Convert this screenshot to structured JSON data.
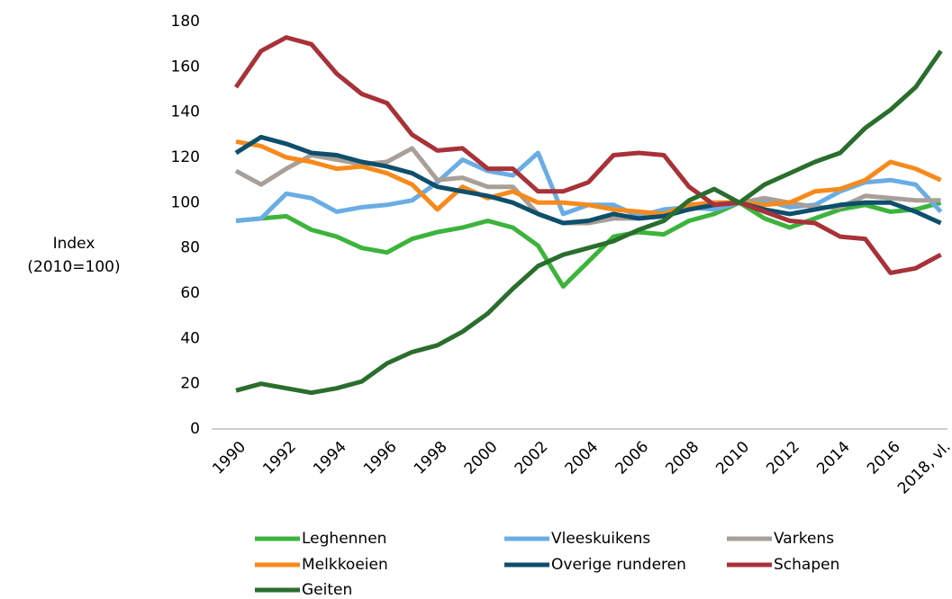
{
  "chart_data": {
    "type": "line",
    "y_label": [
      "Index",
      "(2010=100)"
    ],
    "categories": [
      "1990",
      null,
      "1992",
      null,
      "1994",
      null,
      "1996",
      null,
      "1998",
      null,
      "2000",
      null,
      "2002",
      null,
      "2004",
      null,
      "2006",
      null,
      "2008",
      null,
      "2010",
      null,
      "2012",
      null,
      "2014",
      null,
      "2016",
      null,
      "2018, vl."
    ],
    "series": [
      {
        "name": "Leghennen",
        "color": "#3cb43c",
        "values": [
          92,
          93,
          94,
          88,
          85,
          80,
          78,
          84,
          87,
          89,
          92,
          89,
          81,
          63,
          74,
          85,
          87,
          86,
          92,
          95,
          100,
          93,
          89,
          93,
          97,
          99,
          96,
          97,
          100
        ]
      },
      {
        "name": "Vleeskuikens",
        "color": "#6aade4",
        "values": [
          92,
          93,
          104,
          102,
          96,
          98,
          99,
          101,
          109,
          119,
          114,
          112,
          122,
          95,
          99,
          99,
          94,
          97,
          98,
          97,
          100,
          101,
          98,
          99,
          105,
          109,
          110,
          108,
          96
        ]
      },
      {
        "name": "Varkens",
        "color": "#a89f98",
        "values": [
          114,
          108,
          115,
          121,
          119,
          117,
          118,
          124,
          110,
          111,
          107,
          107,
          95,
          91,
          91,
          93,
          93,
          95,
          98,
          100,
          100,
          102,
          100,
          98,
          98,
          103,
          102,
          101,
          101
        ]
      },
      {
        "name": "Melkkoeien",
        "color": "#f78a1c",
        "values": [
          127,
          125,
          120,
          118,
          115,
          116,
          113,
          108,
          97,
          107,
          102,
          105,
          100,
          100,
          99,
          97,
          96,
          95,
          99,
          100,
          100,
          99,
          100,
          105,
          106,
          110,
          118,
          115,
          110
        ]
      },
      {
        "name": "Overige runderen",
        "color": "#0d4f6b",
        "values": [
          122,
          129,
          126,
          122,
          121,
          118,
          116,
          113,
          107,
          105,
          103,
          100,
          95,
          91,
          92,
          95,
          93,
          94,
          97,
          99,
          100,
          97,
          95,
          97,
          99,
          100,
          100,
          96,
          91
        ]
      },
      {
        "name": "Schapen",
        "color": "#a83239",
        "values": [
          151,
          167,
          173,
          170,
          157,
          148,
          144,
          130,
          123,
          124,
          115,
          115,
          105,
          105,
          109,
          121,
          122,
          121,
          107,
          99,
          100,
          96,
          92,
          91,
          85,
          84,
          69,
          71,
          77
        ]
      },
      {
        "name": "Geiten",
        "color": "#2a6e2e",
        "values": [
          17,
          20,
          18,
          16,
          18,
          21,
          29,
          34,
          37,
          43,
          51,
          62,
          72,
          77,
          80,
          83,
          88,
          92,
          101,
          106,
          100,
          108,
          113,
          118,
          122,
          133,
          141,
          151,
          167
        ]
      }
    ],
    "ylim": [
      0,
      180
    ],
    "yticks": [
      0,
      20,
      40,
      60,
      80,
      100,
      120,
      140,
      160,
      180
    ],
    "grid": false
  }
}
